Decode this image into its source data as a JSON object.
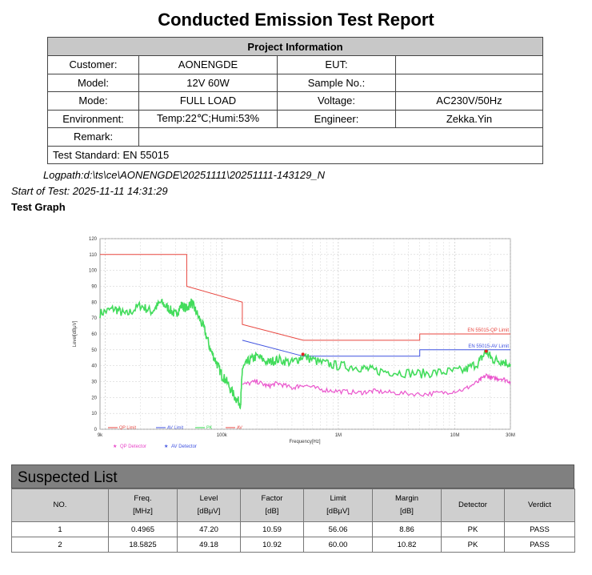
{
  "report": {
    "title": "Conducted Emission Test Report",
    "project_header": "Project Information",
    "customer_label": "Customer:",
    "customer": "AONENGDE",
    "eut_label": "EUT:",
    "eut": "",
    "model_label": "Model:",
    "model": "12V 60W",
    "sample_label": "Sample No.:",
    "sample": "",
    "mode_label": "Mode:",
    "mode": "FULL LOAD",
    "voltage_label": "Voltage:",
    "voltage": "AC230V/50Hz",
    "env_label": "Environment:",
    "environment": "Temp:22℃;Humi:53%",
    "engineer_label": "Engineer:",
    "engineer": "Zekka.Yin",
    "remark_label": "Remark:",
    "remark": "",
    "standard": "Test Standard: EN 55015",
    "logpath": "Logpath:d:\\ts\\ce\\AONENGDE\\20251111\\20251111-143129_N",
    "start": "Start of Test: 2025-11-11 14:31:29",
    "graph_heading": "Test Graph"
  },
  "chart_data": {
    "type": "line",
    "xscale": "log",
    "xlim": [
      9000,
      30000000
    ],
    "ylim": [
      0,
      120
    ],
    "xlabel": "Frequency[Hz]",
    "ylabel": "Level[dBμV]",
    "x_ticks": [
      {
        "v": 9000,
        "label": "9k"
      },
      {
        "v": 100000,
        "label": "100k"
      },
      {
        "v": 1000000,
        "label": "1M"
      },
      {
        "v": 10000000,
        "label": "10M"
      },
      {
        "v": 30000000,
        "label": "30M"
      }
    ],
    "y_ticks": [
      0,
      10,
      20,
      30,
      40,
      50,
      60,
      70,
      80,
      90,
      100,
      110,
      120
    ],
    "grid": true,
    "series": [
      {
        "name": "EN 55015-QP Limit",
        "color": "#e8463f",
        "kind": "limit",
        "points": [
          [
            9000,
            110
          ],
          [
            50000,
            110
          ],
          [
            50000,
            90
          ],
          [
            150000,
            80
          ],
          [
            150000,
            66
          ],
          [
            500000,
            56
          ],
          [
            5000000,
            56
          ],
          [
            5000000,
            60
          ],
          [
            30000000,
            60
          ]
        ]
      },
      {
        "name": "EN 55015-AV Limit",
        "color": "#3f52e0",
        "kind": "limit",
        "points": [
          [
            150000,
            56
          ],
          [
            500000,
            46
          ],
          [
            5000000,
            46
          ],
          [
            5000000,
            50
          ],
          [
            30000000,
            50
          ]
        ]
      },
      {
        "name": "PK",
        "color": "#2fd84a",
        "kind": "trace",
        "points": [
          [
            9000,
            73
          ],
          [
            12000,
            76
          ],
          [
            15000,
            72
          ],
          [
            20000,
            78
          ],
          [
            25000,
            74
          ],
          [
            30000,
            80
          ],
          [
            35000,
            76
          ],
          [
            40000,
            72
          ],
          [
            45000,
            78
          ],
          [
            50000,
            76
          ],
          [
            55000,
            80
          ],
          [
            60000,
            74
          ],
          [
            70000,
            64
          ],
          [
            80000,
            50
          ],
          [
            90000,
            42
          ],
          [
            100000,
            34
          ],
          [
            110000,
            30
          ],
          [
            130000,
            20
          ],
          [
            145000,
            16
          ],
          [
            150000,
            38
          ],
          [
            170000,
            43
          ],
          [
            200000,
            46
          ],
          [
            250000,
            42
          ],
          [
            300000,
            44
          ],
          [
            400000,
            42
          ],
          [
            500000,
            46
          ],
          [
            700000,
            42
          ],
          [
            1000000,
            40
          ],
          [
            1500000,
            39
          ],
          [
            2000000,
            37
          ],
          [
            3000000,
            36
          ],
          [
            5000000,
            35
          ],
          [
            8000000,
            36
          ],
          [
            12000000,
            37
          ],
          [
            16000000,
            42
          ],
          [
            18600000,
            49
          ],
          [
            21000000,
            44
          ],
          [
            25000000,
            43
          ],
          [
            30000000,
            41
          ]
        ]
      },
      {
        "name": "QP Detector",
        "color": "#e844c8",
        "kind": "trace",
        "points": [
          [
            150000,
            28
          ],
          [
            200000,
            30
          ],
          [
            250000,
            27
          ],
          [
            300000,
            29
          ],
          [
            400000,
            26
          ],
          [
            500000,
            28
          ],
          [
            700000,
            25
          ],
          [
            1000000,
            24
          ],
          [
            1500000,
            23
          ],
          [
            2000000,
            24
          ],
          [
            3000000,
            23
          ],
          [
            5000000,
            22
          ],
          [
            8000000,
            23
          ],
          [
            12000000,
            25
          ],
          [
            16000000,
            30
          ],
          [
            18600000,
            34
          ],
          [
            21000000,
            32
          ],
          [
            25000000,
            32
          ],
          [
            30000000,
            30
          ]
        ]
      }
    ],
    "inline_labels": [
      "EN 55015-QP Limit",
      "EN 55015-AV Limit"
    ],
    "legend_bottom": [
      "QP Detector",
      "AV Detector"
    ],
    "legend_inplot": [
      "QP Limit",
      "AV Limit",
      "PK",
      "AV"
    ],
    "markers": [
      {
        "x": 496500,
        "y": 47.2
      },
      {
        "x": 18582500,
        "y": 49.18
      }
    ]
  },
  "suspected": {
    "title": "Suspected List",
    "headers": [
      {
        "l1": "NO.",
        "l2": ""
      },
      {
        "l1": "Freq.",
        "l2": "[MHz]"
      },
      {
        "l1": "Level",
        "l2": "[dBμV]"
      },
      {
        "l1": "Factor",
        "l2": "[dB]"
      },
      {
        "l1": "Limit",
        "l2": "[dBμV]"
      },
      {
        "l1": "Margin",
        "l2": "[dB]"
      },
      {
        "l1": "Detector",
        "l2": ""
      },
      {
        "l1": "Verdict",
        "l2": ""
      }
    ],
    "rows": [
      [
        "1",
        "0.4965",
        "47.20",
        "10.59",
        "56.06",
        "8.86",
        "PK",
        "PASS"
      ],
      [
        "2",
        "18.5825",
        "49.18",
        "10.92",
        "60.00",
        "10.82",
        "PK",
        "PASS"
      ]
    ]
  }
}
